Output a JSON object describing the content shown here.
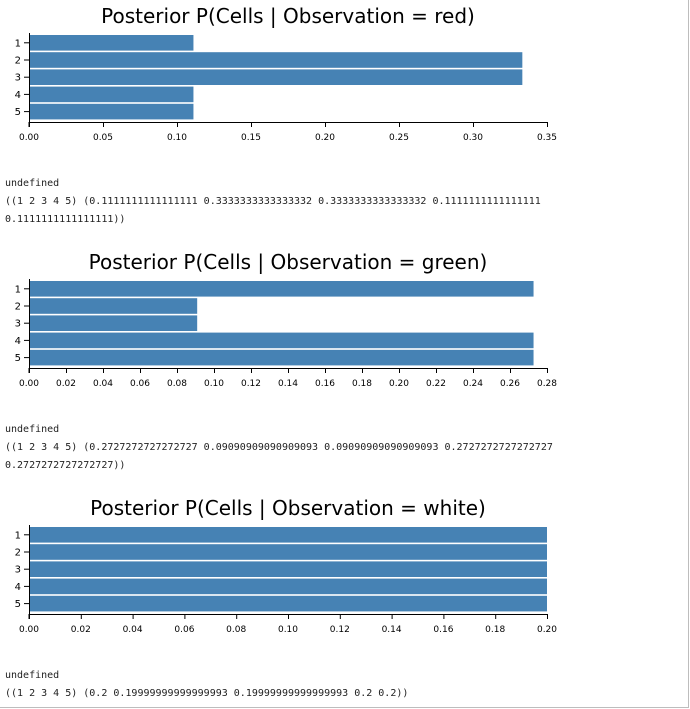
{
  "chart_data": [
    {
      "type": "bar",
      "orientation": "horizontal",
      "title": "Posterior P(Cells | Observation = red)",
      "categories": [
        "1",
        "2",
        "3",
        "4",
        "5"
      ],
      "values": [
        0.1111111111111111,
        0.3333333333333332,
        0.3333333333333332,
        0.1111111111111111,
        0.1111111111111111
      ],
      "xlim": [
        0,
        0.35
      ],
      "xticks": [
        "0.00",
        "0.05",
        "0.10",
        "0.15",
        "0.20",
        "0.25",
        "0.30",
        "0.35"
      ],
      "bar_color": "#4682b4",
      "grid": false
    },
    {
      "type": "bar",
      "orientation": "horizontal",
      "title": "Posterior P(Cells | Observation = green)",
      "categories": [
        "1",
        "2",
        "3",
        "4",
        "5"
      ],
      "values": [
        0.2727272727272727,
        0.09090909090909093,
        0.09090909090909093,
        0.2727272727272727,
        0.2727272727272727
      ],
      "xlim": [
        0,
        0.28
      ],
      "xticks": [
        "0.00",
        "0.02",
        "0.04",
        "0.06",
        "0.08",
        "0.10",
        "0.12",
        "0.14",
        "0.16",
        "0.18",
        "0.20",
        "0.22",
        "0.24",
        "0.26",
        "0.28"
      ],
      "bar_color": "#4682b4",
      "grid": false
    },
    {
      "type": "bar",
      "orientation": "horizontal",
      "title": "Posterior P(Cells | Observation = white)",
      "categories": [
        "1",
        "2",
        "3",
        "4",
        "5"
      ],
      "values": [
        0.2,
        0.19999999999999993,
        0.19999999999999993,
        0.2,
        0.2
      ],
      "xlim": [
        0,
        0.2
      ],
      "xticks": [
        "0.00",
        "0.02",
        "0.04",
        "0.06",
        "0.08",
        "0.10",
        "0.12",
        "0.14",
        "0.16",
        "0.18",
        "0.20"
      ],
      "bar_color": "#4682b4",
      "grid": false
    }
  ],
  "outputs": [
    {
      "status": "undefined",
      "result_line1": "((1 2 3 4 5) (0.1111111111111111 0.3333333333333332 0.3333333333333332 0.1111111111111111",
      "result_line2": "0.1111111111111111))"
    },
    {
      "status": "undefined",
      "result_line1": "((1 2 3 4 5) (0.2727272727272727 0.09090909090909093 0.09090909090909093 0.2727272727272727",
      "result_line2": "0.2727272727272727))"
    },
    {
      "status": "undefined",
      "result_line1": "((1 2 3 4 5) (0.2 0.19999999999999993 0.19999999999999993 0.2 0.2))",
      "result_line2": ""
    }
  ]
}
